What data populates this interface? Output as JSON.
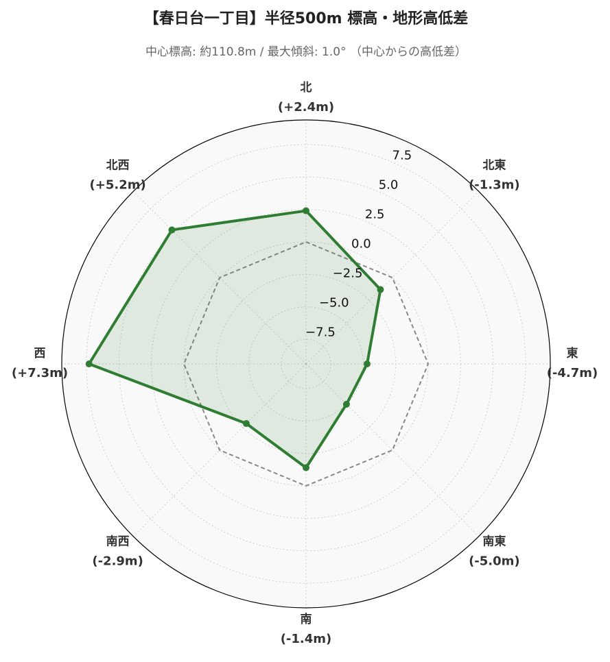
{
  "chart_data": {
    "type": "radar",
    "title": "【春日台一丁目】半径500m 標高・地形高低差",
    "subtitle": "中心標高: 約110.8m / 最大傾斜: 1.0° （中心からの高低差）",
    "categories": [
      "北",
      "北東",
      "東",
      "南東",
      "南",
      "南西",
      "西",
      "北西"
    ],
    "values": [
      2.4,
      -1.3,
      -4.7,
      -5.0,
      -1.4,
      -2.9,
      7.3,
      5.2
    ],
    "value_labels": [
      "(+2.4m)",
      "(-1.3m)",
      "(-4.7m)",
      "(-5.0m)",
      "(-1.4m)",
      "(-2.9m)",
      "(+7.3m)",
      "(+5.2m)"
    ],
    "color": "#2e7d32",
    "baseline": 0,
    "ylim": [
      -9.4,
      9.4
    ],
    "yticks": [
      {
        "value": -7.5,
        "label": "−7.5"
      },
      {
        "value": -5,
        "label": "−5.0"
      },
      {
        "value": -2.5,
        "label": "−2.5"
      },
      {
        "value": 0,
        "label": "0.0"
      },
      2.5,
      {
        "value": 5,
        "label": "5.0"
      },
      7.5
    ],
    "grid": true
  }
}
